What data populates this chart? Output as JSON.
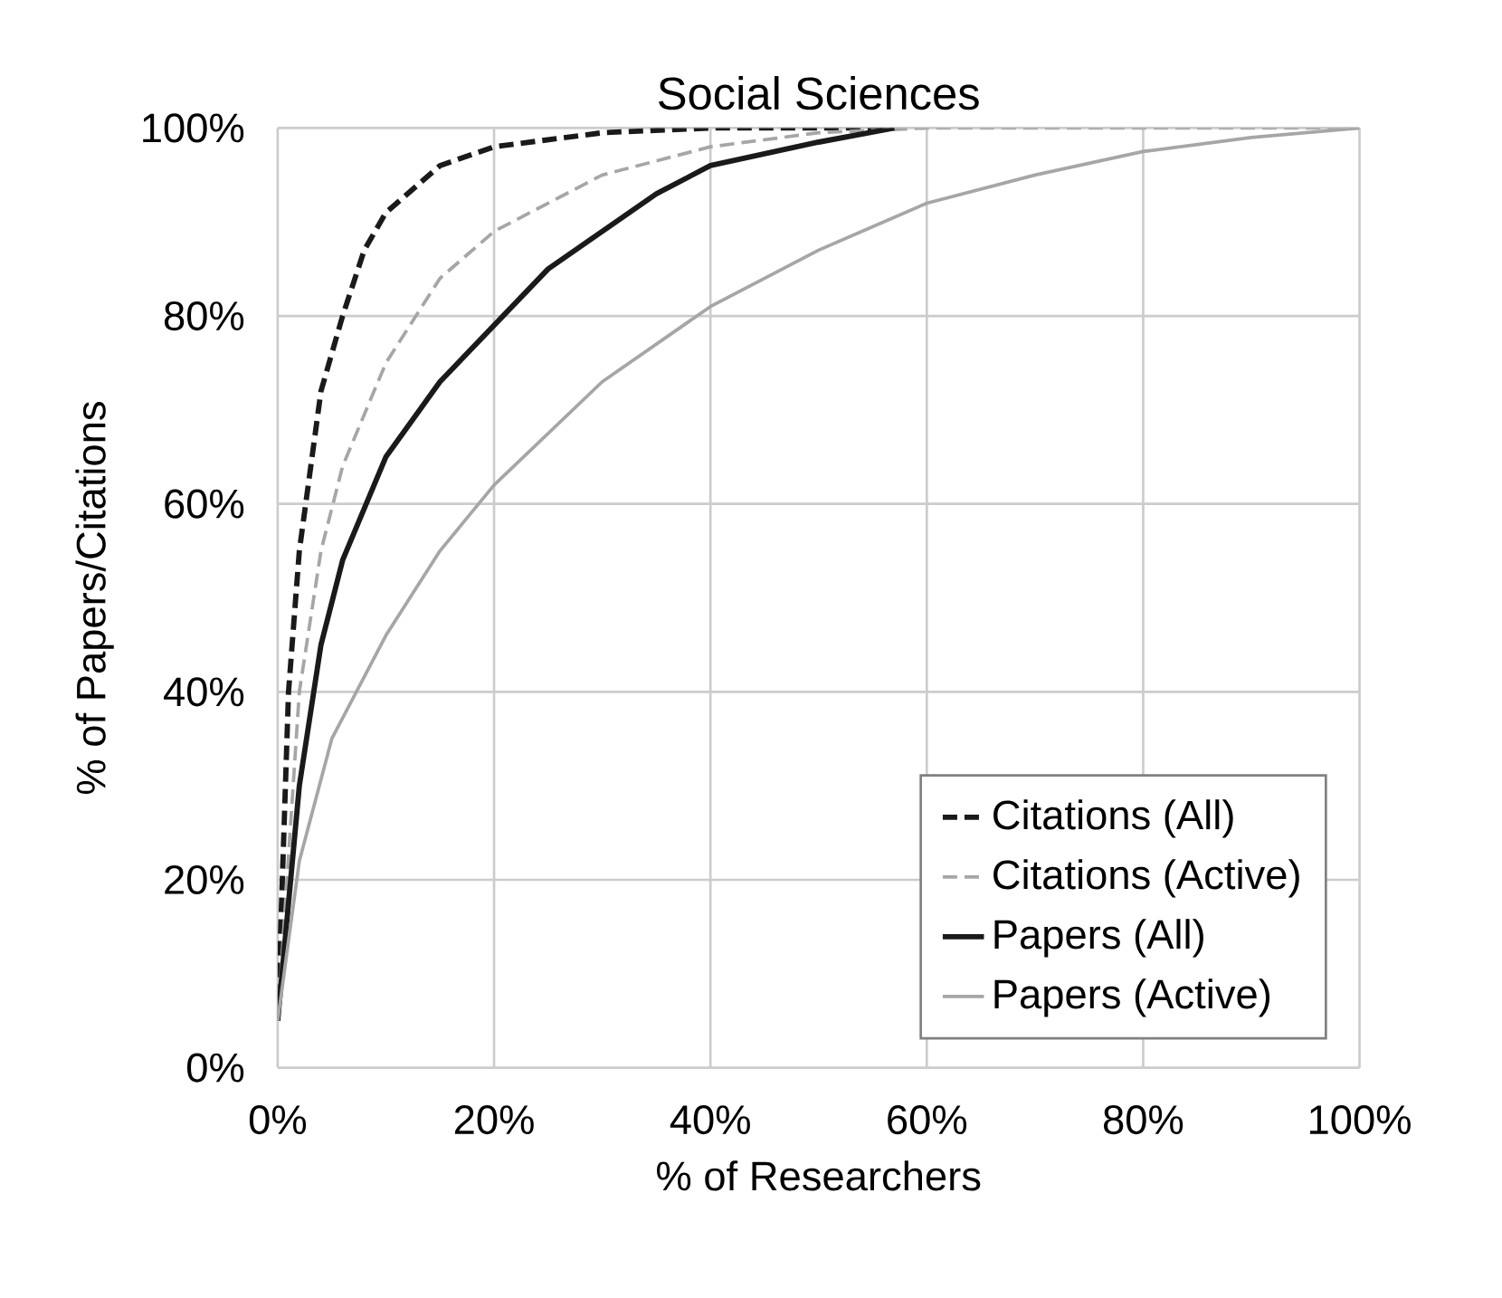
{
  "chart_data": {
    "type": "line",
    "title": "Social Sciences",
    "xlabel": "% of Researchers",
    "ylabel": "% of Papers/Citations",
    "xlim": [
      0,
      100
    ],
    "ylim": [
      0,
      100
    ],
    "xticks": [
      {
        "value": 0,
        "label": "0%"
      },
      {
        "value": 20,
        "label": "20%"
      },
      {
        "value": 40,
        "label": "40%"
      },
      {
        "value": 60,
        "label": "60%"
      },
      {
        "value": 80,
        "label": "80%"
      },
      {
        "value": 100,
        "label": "100%"
      }
    ],
    "yticks": [
      {
        "value": 0,
        "label": "0%"
      },
      {
        "value": 20,
        "label": "20%"
      },
      {
        "value": 40,
        "label": "40%"
      },
      {
        "value": 60,
        "label": "60%"
      },
      {
        "value": 80,
        "label": "80%"
      },
      {
        "value": 100,
        "label": "100%"
      }
    ],
    "grid": true,
    "legend": "bottom right",
    "marker": "none",
    "series": [
      {
        "name": "Citations (All)",
        "color": "#1a1a1a",
        "line_style": "dashed",
        "x": [
          0,
          1,
          2,
          4,
          6,
          8,
          10,
          15,
          20,
          30,
          40,
          57
        ],
        "values": [
          5,
          40,
          55,
          72,
          80,
          87,
          91,
          96,
          98,
          99.5,
          100,
          100
        ]
      },
      {
        "name": "Citations (Active)",
        "color": "#a6a6a6",
        "line_style": "dashed",
        "x": [
          0,
          2,
          4,
          6,
          10,
          15,
          20,
          30,
          40,
          50,
          60,
          100
        ],
        "values": [
          5,
          40,
          55,
          64,
          75,
          84,
          89,
          95,
          98,
          99.5,
          100,
          100
        ]
      },
      {
        "name": "Papers (All)",
        "color": "#1a1a1a",
        "line_style": "solid",
        "x": [
          0,
          2,
          4,
          6,
          10,
          15,
          20,
          25,
          30,
          35,
          40,
          50,
          57
        ],
        "values": [
          5,
          30,
          45,
          54,
          65,
          73,
          79,
          85,
          89,
          93,
          96,
          98.5,
          100
        ]
      },
      {
        "name": "Papers (Active)",
        "color": "#a6a6a6",
        "line_style": "solid",
        "x": [
          0,
          2,
          5,
          10,
          15,
          20,
          30,
          40,
          50,
          60,
          70,
          80,
          90,
          100
        ],
        "values": [
          5,
          22,
          35,
          46,
          55,
          62,
          73,
          81,
          87,
          92,
          95,
          97.5,
          99,
          100
        ]
      }
    ]
  }
}
